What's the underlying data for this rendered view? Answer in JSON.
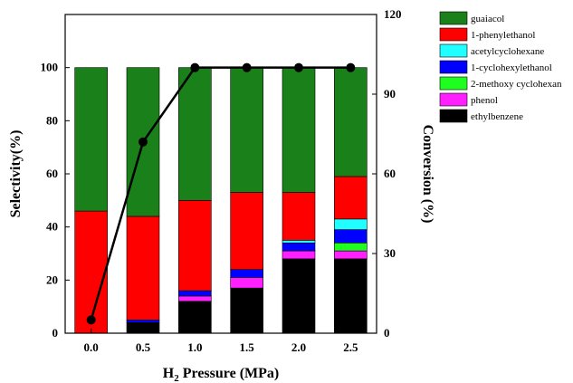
{
  "chart_data": {
    "type": "bar",
    "stacked": true,
    "categories": [
      "0.0",
      "0.5",
      "1.0",
      "1.5",
      "2.0",
      "2.5"
    ],
    "xlabel": "H2 Pressure (MPa)",
    "xlabel_parts": {
      "base": "H",
      "sub": "2",
      "rest": " Pressure (MPa)"
    },
    "ylabel": "Selectivity(%)",
    "ylim": [
      0,
      120
    ],
    "yticks": [
      "0",
      "20",
      "40",
      "60",
      "80",
      "100"
    ],
    "y2label": "Conversion (%)",
    "y2lim": [
      0,
      120
    ],
    "y2ticks": [
      "0",
      "30",
      "60",
      "90",
      "120"
    ],
    "series": [
      {
        "name": "ethylbenzene",
        "color": "#000000",
        "values": [
          0,
          4,
          12,
          17,
          28,
          28
        ]
      },
      {
        "name": "phenol",
        "color": "#ff1fff",
        "values": [
          0,
          0,
          2,
          4,
          3,
          3
        ]
      },
      {
        "name": "2-methoxy cyclohexan",
        "color": "#1fff1f",
        "values": [
          0,
          0,
          0,
          0,
          0,
          3
        ]
      },
      {
        "name": "1-cyclohexylethanol",
        "color": "#0000ff",
        "values": [
          0,
          1,
          2,
          3,
          3,
          5
        ]
      },
      {
        "name": "acetylcyclohexane",
        "color": "#1fffff",
        "values": [
          0,
          0,
          0,
          0,
          1,
          4
        ]
      },
      {
        "name": "1-phenylethanol",
        "color": "#ff0000",
        "values": [
          46,
          39,
          34,
          29,
          18,
          16
        ]
      },
      {
        "name": "guaiacol",
        "color": "#1a801a",
        "values": [
          54,
          56,
          50,
          47,
          47,
          41
        ]
      }
    ],
    "legend_order": [
      "guaiacol",
      "1-phenylethanol",
      "acetylcyclohexane",
      "1-cyclohexylethanol",
      "2-methoxy cyclohexan",
      "phenol",
      "ethylbenzene"
    ],
    "line_series": {
      "name": "Conversion",
      "axis": "right",
      "color": "#000000",
      "values": [
        5,
        72,
        100,
        100,
        100,
        100
      ]
    }
  }
}
